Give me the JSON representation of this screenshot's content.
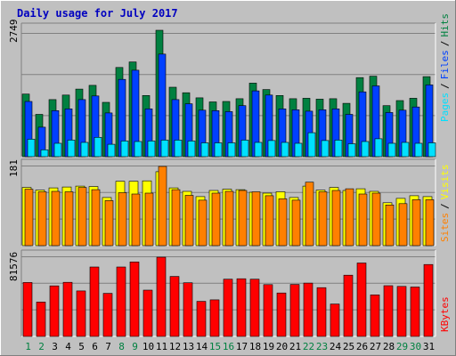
{
  "chart_data": {
    "type": "bar",
    "title": "Daily usage for July 2017",
    "categories": [
      "1",
      "2",
      "3",
      "4",
      "5",
      "6",
      "7",
      "8",
      "9",
      "10",
      "11",
      "12",
      "13",
      "14",
      "15",
      "16",
      "17",
      "18",
      "19",
      "20",
      "21",
      "22",
      "23",
      "24",
      "25",
      "26",
      "27",
      "28",
      "29",
      "30",
      "31"
    ],
    "weekend_days": [
      "1",
      "2",
      "8",
      "9",
      "15",
      "16",
      "22",
      "23",
      "29",
      "30"
    ],
    "panels": [
      {
        "id": "top",
        "max_label": "2749",
        "ymax": 2749,
        "series": [
          {
            "name": "Hits",
            "color": "#008040",
            "values": [
              1360,
              920,
              1240,
              1340,
              1470,
              1550,
              1180,
              1940,
              2060,
              1330,
              2749,
              1510,
              1390,
              1280,
              1190,
              1200,
              1260,
              1600,
              1460,
              1330,
              1260,
              1270,
              1250,
              1260,
              1160,
              1720,
              1750,
              1110,
              1220,
              1270,
              1740
            ]
          },
          {
            "name": "Files",
            "color": "#0040ff",
            "values": [
              1200,
              640,
              1000,
              1040,
              1240,
              1320,
              950,
              1680,
              1880,
              1040,
              2230,
              1240,
              1150,
              1010,
              1000,
              980,
              1110,
              1430,
              1340,
              1040,
              1020,
              990,
              1020,
              1040,
              920,
              1410,
              1540,
              960,
              1010,
              1080,
              1560
            ]
          },
          {
            "name": "Pages",
            "color": "#00e0ff",
            "values": [
              380,
              150,
              290,
              360,
              310,
              420,
              270,
              340,
              330,
              340,
              360,
              360,
              340,
              300,
              300,
              300,
              360,
              310,
              350,
              310,
              290,
              520,
              350,
              360,
              280,
              330,
              390,
              290,
              310,
              290,
              300
            ]
          }
        ]
      },
      {
        "id": "middle",
        "max_label": "181",
        "ymax": 181,
        "series": [
          {
            "name": "Visits",
            "color": "#ffff00",
            "values": [
              133,
              127,
              132,
              134,
              136,
              135,
              110,
              147,
              147,
              148,
              169,
              132,
              124,
              112,
              126,
              129,
              128,
              122,
              120,
              123,
              110,
              136,
              127,
              133,
              126,
              130,
              124,
              98,
              108,
              114,
              112
            ]
          },
          {
            "name": "Sites",
            "color": "#ff8000",
            "values": [
              129,
              123,
              124,
              123,
              133,
              128,
              103,
              121,
              118,
              120,
              181,
              128,
              115,
              104,
              120,
              124,
              126,
              123,
              114,
              107,
              104,
              145,
              123,
              126,
              130,
              118,
              120,
              93,
              96,
              105,
              105
            ]
          }
        ],
        "second_values": [
          129,
          123,
          124,
          123,
          133,
          128,
          103,
          121,
          118,
          120,
          181,
          128,
          115,
          104,
          120,
          124,
          126,
          123,
          114,
          107,
          104,
          145,
          123,
          126,
          130,
          118,
          120,
          93,
          96,
          105,
          105
        ]
      },
      {
        "id": "bottom",
        "max_label": "81576",
        "ymax": 81576,
        "series": [
          {
            "name": "KBytes",
            "color": "#ff0000",
            "values": [
              55500,
              35400,
              52100,
              55700,
              46800,
              71500,
              44400,
              71500,
              76700,
              47700,
              81576,
              61800,
              55300,
              36100,
              37700,
              58900,
              59400,
              58900,
              53300,
              44700,
              53500,
              54900,
              50200,
              33400,
              63100,
              75600,
              42800,
              52200,
              51500,
              50900,
              74100
            ]
          }
        ]
      }
    ],
    "right_labels": {
      "top": [
        "Pages",
        "/",
        "Files",
        "/",
        "Hits"
      ],
      "middle": [
        "Sites",
        "/",
        "Visits"
      ],
      "bottom": [
        "KBytes"
      ]
    }
  }
}
